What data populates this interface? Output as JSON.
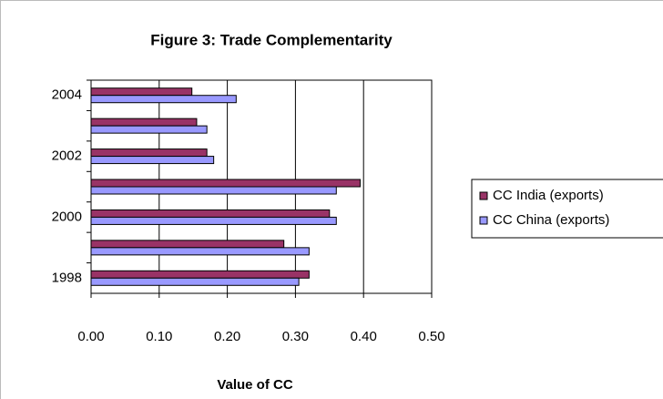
{
  "chart_data": {
    "type": "bar",
    "orientation": "horizontal",
    "title": "Figure 3: Trade Complementarity",
    "x_label": "Value of CC",
    "categories": [
      "1998",
      null,
      "2000",
      null,
      "2002",
      null,
      "2004"
    ],
    "series": [
      {
        "name": "CC India (exports)",
        "color": "#993366",
        "values": [
          0.32,
          0.283,
          0.35,
          0.395,
          0.17,
          0.155,
          0.148
        ]
      },
      {
        "name": "CC China (exports)",
        "color": "#9999ff",
        "values": [
          0.305,
          0.32,
          0.36,
          0.36,
          0.18,
          0.17,
          0.213
        ]
      }
    ],
    "xlim": [
      0,
      0.5
    ],
    "xticks": [
      {
        "value": 0,
        "label": "0.00"
      },
      {
        "value": 0.1,
        "label": "0.10"
      },
      {
        "value": 0.2,
        "label": "0.20"
      },
      {
        "value": 0.3,
        "label": "0.30"
      },
      {
        "value": 0.4,
        "label": "0.40"
      },
      {
        "value": 0.5,
        "label": "0.50"
      }
    ],
    "grid": true,
    "legend": "right"
  }
}
